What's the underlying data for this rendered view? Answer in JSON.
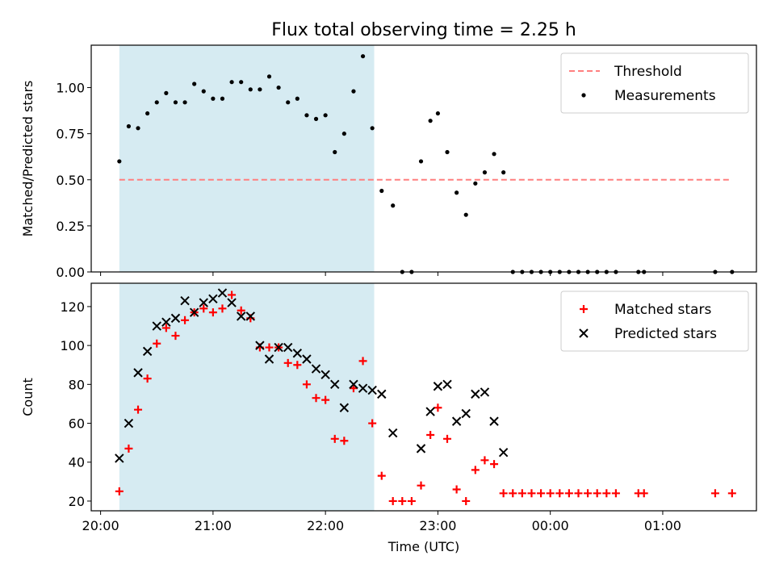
{
  "title": "Flux total observing time = 2.25 h",
  "chart_data": [
    {
      "type": "scatter",
      "panel": "top",
      "ylabel": "Matched/Predicted stars",
      "xlabel": "",
      "ylim": [
        0,
        1.23
      ],
      "yticks": [
        0.0,
        0.25,
        0.5,
        0.75,
        1.0
      ],
      "ytick_labels": [
        "0.00",
        "0.25",
        "0.50",
        "0.75",
        "1.00"
      ],
      "shaded_span": [
        "20:10",
        "22:26"
      ],
      "shade_color": "#add8e6",
      "legend_position": "upper right",
      "threshold": {
        "name": "Threshold",
        "y": 0.5,
        "x_range": [
          "20:10",
          "25:37"
        ],
        "color": "#ff7f7f",
        "style": "dashed"
      },
      "series": [
        {
          "name": "Measurements",
          "marker": "dot",
          "color": "#000000",
          "points": [
            [
              "20:10",
              0.6
            ],
            [
              "20:15",
              0.79
            ],
            [
              "20:20",
              0.78
            ],
            [
              "20:25",
              0.86
            ],
            [
              "20:30",
              0.92
            ],
            [
              "20:35",
              0.97
            ],
            [
              "20:40",
              0.92
            ],
            [
              "20:45",
              0.92
            ],
            [
              "20:50",
              1.02
            ],
            [
              "20:55",
              0.98
            ],
            [
              "21:00",
              0.94
            ],
            [
              "21:05",
              0.94
            ],
            [
              "21:10",
              1.03
            ],
            [
              "21:15",
              1.03
            ],
            [
              "21:20",
              0.99
            ],
            [
              "21:25",
              0.99
            ],
            [
              "21:30",
              1.06
            ],
            [
              "21:35",
              1.0
            ],
            [
              "21:40",
              0.92
            ],
            [
              "21:45",
              0.94
            ],
            [
              "21:50",
              0.85
            ],
            [
              "21:55",
              0.83
            ],
            [
              "22:00",
              0.85
            ],
            [
              "22:05",
              0.65
            ],
            [
              "22:10",
              0.75
            ],
            [
              "22:15",
              0.98
            ],
            [
              "22:20",
              1.17
            ],
            [
              "22:25",
              0.78
            ],
            [
              "22:30",
              0.44
            ],
            [
              "22:36",
              0.36
            ],
            [
              "22:41",
              0.0
            ],
            [
              "22:46",
              0.0
            ],
            [
              "22:51",
              0.6
            ],
            [
              "22:56",
              0.82
            ],
            [
              "23:00",
              0.86
            ],
            [
              "23:05",
              0.65
            ],
            [
              "23:10",
              0.43
            ],
            [
              "23:15",
              0.31
            ],
            [
              "23:20",
              0.48
            ],
            [
              "23:25",
              0.54
            ],
            [
              "23:30",
              0.64
            ],
            [
              "23:35",
              0.54
            ],
            [
              "23:40",
              0.0
            ],
            [
              "23:45",
              0.0
            ],
            [
              "23:50",
              0.0
            ],
            [
              "23:55",
              0.0
            ],
            [
              "24:00",
              0.0
            ],
            [
              "24:05",
              0.0
            ],
            [
              "24:10",
              0.0
            ],
            [
              "24:15",
              0.0
            ],
            [
              "24:20",
              0.0
            ],
            [
              "24:25",
              0.0
            ],
            [
              "24:30",
              0.0
            ],
            [
              "24:35",
              0.0
            ],
            [
              "24:47",
              0.0
            ],
            [
              "24:50",
              0.0
            ],
            [
              "25:28",
              0.0
            ],
            [
              "25:37",
              0.0
            ]
          ]
        }
      ]
    },
    {
      "type": "scatter",
      "panel": "bottom",
      "ylabel": "Count",
      "xlabel": "Time (UTC)",
      "ylim": [
        15,
        132
      ],
      "yticks": [
        20,
        40,
        60,
        80,
        100,
        120
      ],
      "ytick_labels": [
        "20",
        "40",
        "60",
        "80",
        "100",
        "120"
      ],
      "xlim": [
        "19:55",
        "25:50"
      ],
      "xticks": [
        "20:00",
        "21:00",
        "22:00",
        "23:00",
        "24:00",
        "25:00"
      ],
      "xtick_labels": [
        "20:00",
        "21:00",
        "22:00",
        "23:00",
        "00:00",
        "01:00"
      ],
      "shaded_span": [
        "20:10",
        "22:26"
      ],
      "shade_color": "#add8e6",
      "legend_position": "upper right",
      "series": [
        {
          "name": "Matched stars",
          "marker": "plus",
          "color": "#ff0000",
          "points": [
            [
              "20:10",
              25
            ],
            [
              "20:15",
              47
            ],
            [
              "20:20",
              67
            ],
            [
              "20:25",
              83
            ],
            [
              "20:30",
              101
            ],
            [
              "20:35",
              109
            ],
            [
              "20:40",
              105
            ],
            [
              "20:45",
              113
            ],
            [
              "20:50",
              117
            ],
            [
              "20:55",
              119
            ],
            [
              "21:00",
              117
            ],
            [
              "21:05",
              119
            ],
            [
              "21:10",
              126
            ],
            [
              "21:15",
              118
            ],
            [
              "21:20",
              114
            ],
            [
              "21:25",
              99
            ],
            [
              "21:30",
              99
            ],
            [
              "21:35",
              99
            ],
            [
              "21:40",
              91
            ],
            [
              "21:45",
              90
            ],
            [
              "21:50",
              80
            ],
            [
              "21:55",
              73
            ],
            [
              "22:00",
              72
            ],
            [
              "22:05",
              52
            ],
            [
              "22:10",
              51
            ],
            [
              "22:15",
              78
            ],
            [
              "22:20",
              92
            ],
            [
              "22:25",
              60
            ],
            [
              "22:30",
              33
            ],
            [
              "22:36",
              20
            ],
            [
              "22:41",
              20
            ],
            [
              "22:46",
              20
            ],
            [
              "22:51",
              28
            ],
            [
              "22:56",
              54
            ],
            [
              "23:00",
              68
            ],
            [
              "23:05",
              52
            ],
            [
              "23:10",
              26
            ],
            [
              "23:15",
              20
            ],
            [
              "23:20",
              36
            ],
            [
              "23:25",
              41
            ],
            [
              "23:30",
              39
            ],
            [
              "23:35",
              24
            ],
            [
              "23:40",
              24
            ],
            [
              "23:45",
              24
            ],
            [
              "23:50",
              24
            ],
            [
              "23:55",
              24
            ],
            [
              "24:00",
              24
            ],
            [
              "24:05",
              24
            ],
            [
              "24:10",
              24
            ],
            [
              "24:15",
              24
            ],
            [
              "24:20",
              24
            ],
            [
              "24:25",
              24
            ],
            [
              "24:30",
              24
            ],
            [
              "24:35",
              24
            ],
            [
              "24:47",
              24
            ],
            [
              "24:50",
              24
            ],
            [
              "25:28",
              24
            ],
            [
              "25:37",
              24
            ]
          ]
        },
        {
          "name": "Predicted stars",
          "marker": "x",
          "color": "#000000",
          "points": [
            [
              "20:10",
              42
            ],
            [
              "20:15",
              60
            ],
            [
              "20:20",
              86
            ],
            [
              "20:25",
              97
            ],
            [
              "20:30",
              110
            ],
            [
              "20:35",
              112
            ],
            [
              "20:40",
              114
            ],
            [
              "20:45",
              123
            ],
            [
              "20:50",
              117
            ],
            [
              "20:55",
              122
            ],
            [
              "21:00",
              124
            ],
            [
              "21:05",
              127
            ],
            [
              "21:10",
              122
            ],
            [
              "21:15",
              115
            ],
            [
              "21:20",
              115
            ],
            [
              "21:25",
              100
            ],
            [
              "21:30",
              93
            ],
            [
              "21:35",
              99
            ],
            [
              "21:40",
              99
            ],
            [
              "21:45",
              96
            ],
            [
              "21:50",
              93
            ],
            [
              "21:55",
              88
            ],
            [
              "22:00",
              85
            ],
            [
              "22:05",
              80
            ],
            [
              "22:10",
              68
            ],
            [
              "22:15",
              80
            ],
            [
              "22:20",
              78
            ],
            [
              "22:25",
              77
            ],
            [
              "22:30",
              75
            ],
            [
              "22:36",
              55
            ],
            [
              "22:51",
              47
            ],
            [
              "22:56",
              66
            ],
            [
              "23:00",
              79
            ],
            [
              "23:05",
              80
            ],
            [
              "23:10",
              61
            ],
            [
              "23:15",
              65
            ],
            [
              "23:20",
              75
            ],
            [
              "23:25",
              76
            ],
            [
              "23:30",
              61
            ],
            [
              "23:35",
              45
            ]
          ]
        }
      ]
    }
  ]
}
